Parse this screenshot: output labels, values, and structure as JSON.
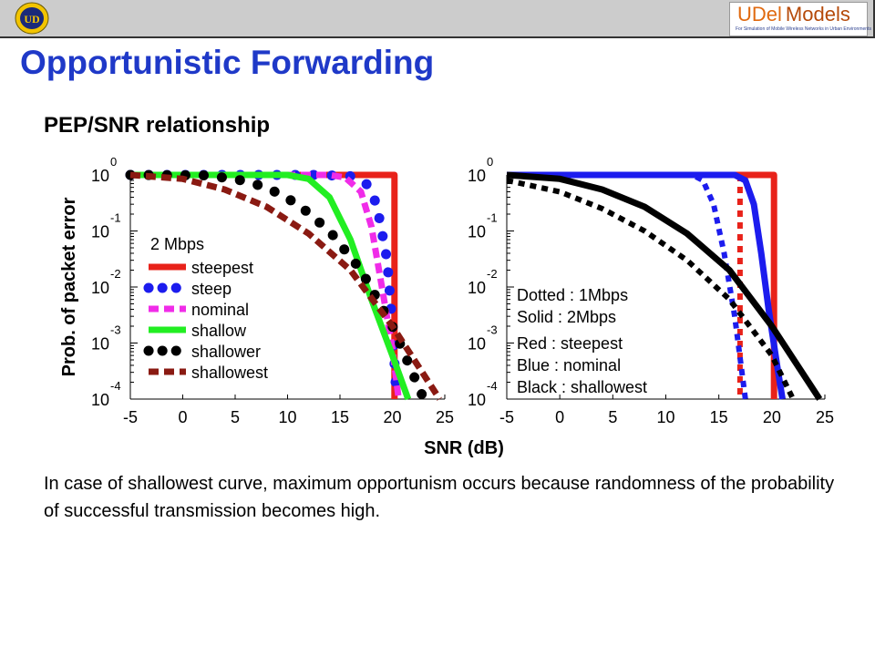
{
  "header": {
    "seal_text": "UD",
    "brand_part1": "UDel",
    "brand_part2": "Models",
    "brand_tagline": "For Simulation of Mobile Wireless Networks in Urban Environments"
  },
  "slide": {
    "title": "Opportunistic Forwarding",
    "subtitle": "PEP/SNR relationship",
    "note": "In case of shallowest curve, maximum opportunism occurs because randomness of the probability of successful transmission becomes high."
  },
  "colors": {
    "title": "#1f39c8",
    "red": "#e8221a",
    "blue": "#1c1cee",
    "magenta": "#f02ce8",
    "green": "#22ee22",
    "black": "#000000",
    "darkred": "#8a1a12",
    "brown": "#9b2a10"
  },
  "chart_data": [
    {
      "type": "line",
      "xlabel": "SNR (dB)",
      "ylabel": "Prob. of packet error",
      "y_scale": "log",
      "xlim": [
        -5,
        25
      ],
      "ylim": [
        0.0001,
        1
      ],
      "x_ticks": [
        "-5",
        "0",
        "5",
        "10",
        "15",
        "20",
        "25"
      ],
      "y_ticks": [
        {
          "base": "10",
          "exp": "0"
        },
        {
          "base": "10",
          "exp": "-1"
        },
        {
          "base": "10",
          "exp": "-2"
        },
        {
          "base": "10",
          "exp": "-3"
        },
        {
          "base": "10",
          "exp": "-4"
        }
      ],
      "annotation": "2 Mbps",
      "legend": [
        "steepest",
        "steep",
        "nominal",
        "shallow",
        "shallower",
        "shallowest"
      ],
      "series": [
        {
          "name": "steepest",
          "color": "#e8221a",
          "style": "solid",
          "x": [
            -5,
            20.2,
            20.2
          ],
          "y": [
            1,
            1,
            0.0001
          ]
        },
        {
          "name": "steep",
          "color": "#1c1cee",
          "style": "bigdots",
          "x": [
            -5,
            13,
            16,
            17.5,
            18.5,
            19.5,
            20,
            20.4
          ],
          "y": [
            1,
            1,
            0.95,
            0.7,
            0.3,
            0.03,
            0.002,
            0.0001
          ]
        },
        {
          "name": "nominal",
          "color": "#f02ce8",
          "style": "dashed",
          "x": [
            -5,
            14,
            15.5,
            17,
            18,
            19,
            20,
            20.6
          ],
          "y": [
            1,
            1,
            0.9,
            0.5,
            0.12,
            0.01,
            0.0008,
            0.0001
          ]
        },
        {
          "name": "shallow",
          "color": "#22ee22",
          "style": "solid",
          "x": [
            -5,
            10,
            12,
            14,
            16,
            18,
            20,
            21.5
          ],
          "y": [
            1,
            1,
            0.85,
            0.4,
            0.07,
            0.006,
            0.0006,
            0.0001
          ]
        },
        {
          "name": "shallower",
          "color": "#000000",
          "style": "bigdots",
          "x": [
            -5,
            2,
            5,
            8,
            11,
            14,
            17,
            20,
            23
          ],
          "y": [
            1,
            0.98,
            0.85,
            0.6,
            0.3,
            0.1,
            0.02,
            0.002,
            0.0001
          ]
        },
        {
          "name": "shallowest",
          "color": "#8a1a12",
          "style": "dashed",
          "x": [
            -5,
            0,
            4,
            8,
            12,
            16,
            20,
            24.5
          ],
          "y": [
            1,
            0.85,
            0.55,
            0.27,
            0.09,
            0.02,
            0.002,
            0.0001
          ]
        }
      ]
    },
    {
      "type": "line",
      "xlabel": "SNR (dB)",
      "y_scale": "log",
      "xlim": [
        -5,
        25
      ],
      "ylim": [
        0.0001,
        1
      ],
      "x_ticks": [
        "-5",
        "0",
        "5",
        "10",
        "15",
        "20",
        "25"
      ],
      "y_ticks": [
        {
          "base": "10",
          "exp": "0"
        },
        {
          "base": "10",
          "exp": "-1"
        },
        {
          "base": "10",
          "exp": "-2"
        },
        {
          "base": "10",
          "exp": "-3"
        },
        {
          "base": "10",
          "exp": "-4"
        }
      ],
      "annotations": [
        "Dotted : 1Mbps",
        "Solid : 2Mbps",
        "Red : steepest",
        "Blue : nominal",
        "Black : shallowest"
      ],
      "series": [
        {
          "color": "#e8221a",
          "style": "solid",
          "x": [
            -5,
            20.2,
            20.2
          ],
          "y": [
            1,
            1,
            0.0001
          ]
        },
        {
          "color": "#e8221a",
          "style": "dotted",
          "x": [
            17,
            17
          ],
          "y": [
            1,
            0.0001
          ]
        },
        {
          "color": "#1c1cee",
          "style": "solid",
          "x": [
            -5,
            16.5,
            17.5,
            18.3,
            19,
            19.7,
            20.5,
            21
          ],
          "y": [
            1,
            1,
            0.8,
            0.3,
            0.04,
            0.004,
            0.0004,
            0.0001
          ]
        },
        {
          "color": "#1c1cee",
          "style": "dotted",
          "x": [
            -5,
            12.5,
            13.5,
            14.5,
            15.5,
            16.5,
            17.5
          ],
          "y": [
            1,
            1,
            0.8,
            0.3,
            0.04,
            0.003,
            0.0001
          ]
        },
        {
          "color": "#000000",
          "style": "solid",
          "x": [
            -5,
            0,
            4,
            8,
            12,
            16,
            20,
            24.5
          ],
          "y": [
            1,
            0.85,
            0.55,
            0.27,
            0.09,
            0.02,
            0.002,
            0.0001
          ]
        },
        {
          "color": "#000000",
          "style": "dotted",
          "x": [
            -5,
            0,
            4,
            8,
            12,
            16,
            20,
            22
          ],
          "y": [
            0.8,
            0.5,
            0.25,
            0.1,
            0.03,
            0.006,
            0.0006,
            0.0001
          ]
        }
      ]
    }
  ]
}
